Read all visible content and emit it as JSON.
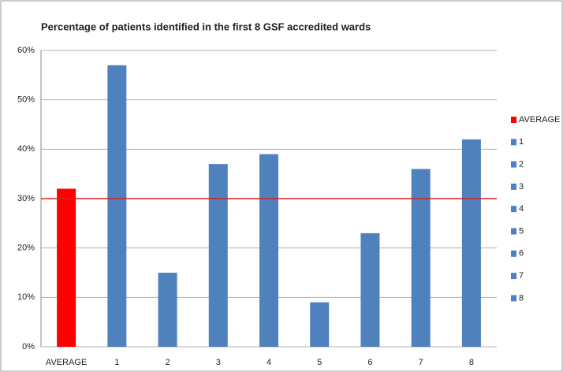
{
  "chart_data": {
    "type": "bar",
    "title": "Percentage of patients identified in the first 8 GSF accredited wards",
    "categories": [
      "AVERAGE",
      "1",
      "2",
      "3",
      "4",
      "5",
      "6",
      "7",
      "8"
    ],
    "values": [
      32,
      57,
      15,
      37,
      39,
      9,
      23,
      36,
      42
    ],
    "colors": [
      "#ff0000",
      "#4f81bd",
      "#4f81bd",
      "#4f81bd",
      "#4f81bd",
      "#4f81bd",
      "#4f81bd",
      "#4f81bd",
      "#4f81bd"
    ],
    "ylim": [
      0,
      60
    ],
    "yticks": [
      {
        "value": 0,
        "label": "0%"
      },
      {
        "value": 10,
        "label": "10%"
      },
      {
        "value": 20,
        "label": "20%"
      },
      {
        "value": 30,
        "label": "30%"
      },
      {
        "value": 40,
        "label": "40%"
      },
      {
        "value": 50,
        "label": "50%"
      },
      {
        "value": 60,
        "label": "60%"
      }
    ],
    "grid": true,
    "reference_line": {
      "value": 30,
      "color": "#d62020"
    },
    "legend": "right"
  }
}
